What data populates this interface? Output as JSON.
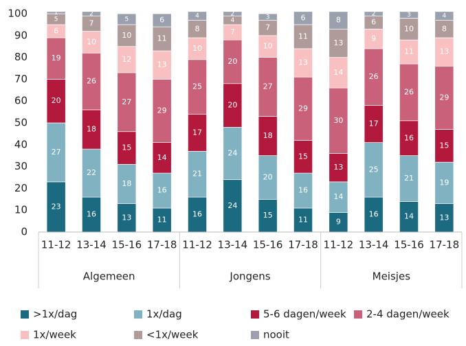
{
  "chart_data": {
    "type": "stacked-bar",
    "categories": [
      "11-12",
      "13-14",
      "15-16",
      "17-18",
      "11-12",
      "13-14",
      "15-16",
      "17-18",
      "11-12",
      "13-14",
      "15-16",
      "17-18"
    ],
    "groups": [
      "Algemeen",
      "Jongens",
      "Meisjes"
    ],
    "ylim": [
      0,
      100
    ],
    "yticks": [
      0,
      10,
      20,
      30,
      40,
      50,
      60,
      70,
      80,
      90,
      100
    ],
    "series": [
      {
        "name": ">1x/dag",
        "color": "#1b6a80",
        "values": [
          23,
          16,
          13,
          11,
          16,
          24,
          15,
          11,
          9,
          16,
          14,
          13
        ]
      },
      {
        "name": "1x/dag",
        "color": "#80b2c1",
        "values": [
          27,
          22,
          18,
          16,
          21,
          24,
          20,
          16,
          14,
          25,
          21,
          19
        ]
      },
      {
        "name": "5-6 dagen/week",
        "color": "#b3183d",
        "values": [
          20,
          18,
          15,
          14,
          17,
          20,
          18,
          15,
          13,
          17,
          16,
          15
        ]
      },
      {
        "name": "2-4 dagen/week",
        "color": "#c9617b",
        "values": [
          19,
          26,
          27,
          29,
          25,
          20,
          27,
          29,
          30,
          26,
          26,
          29
        ]
      },
      {
        "name": "1x/week",
        "color": "#f9c0c1",
        "values": [
          6,
          10,
          12,
          13,
          10,
          7,
          10,
          13,
          14,
          9,
          11,
          13
        ]
      },
      {
        "name": "<1x/week",
        "color": "#b09b9b",
        "values": [
          5,
          7,
          10,
          11,
          8,
          4,
          7,
          11,
          13,
          6,
          10,
          8
        ]
      },
      {
        "name": "nooit",
        "color": "#9aa0ae",
        "values": [
          1,
          2,
          5,
          6,
          4,
          2,
          3,
          6,
          8,
          2,
          3,
          4
        ]
      }
    ]
  }
}
